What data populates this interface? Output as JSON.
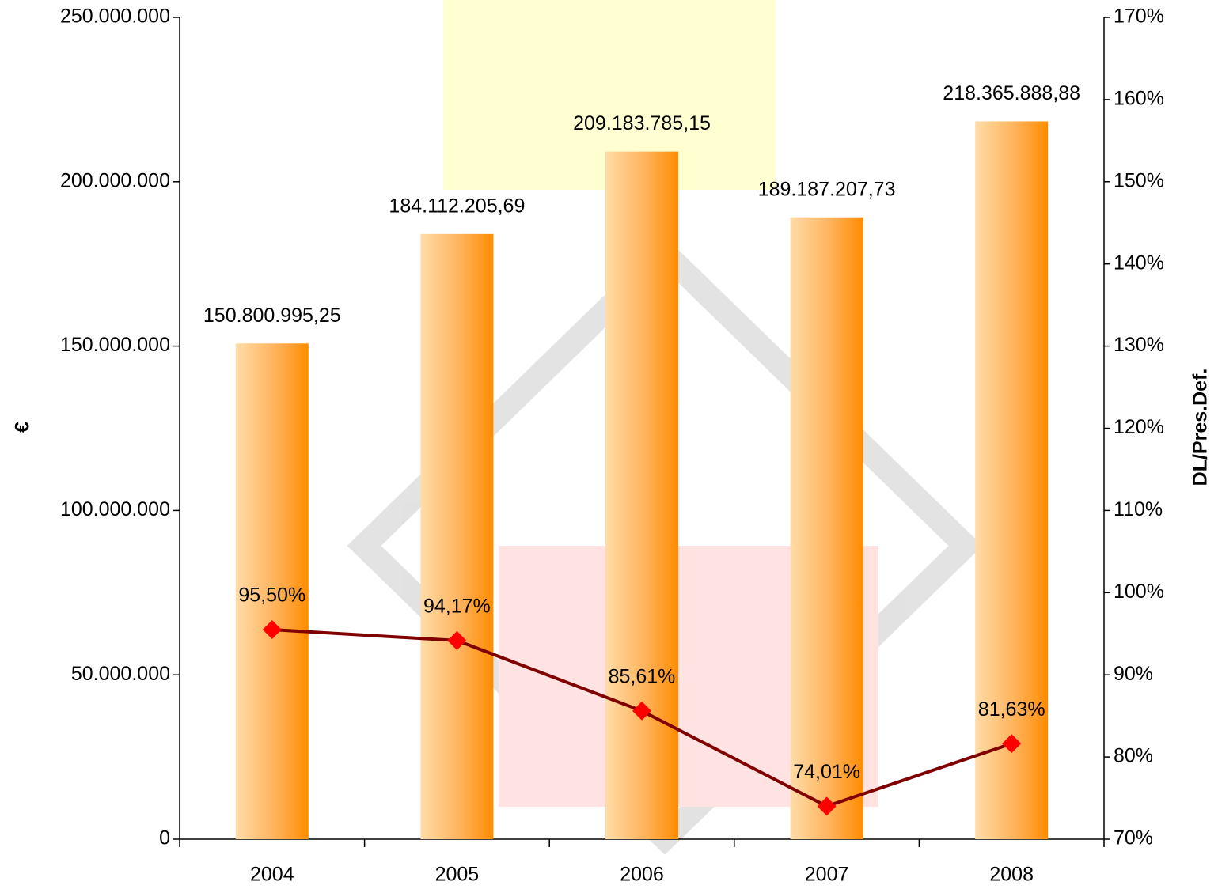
{
  "chart_data": {
    "type": "bar",
    "y_label": "€",
    "y2_label": "DL/Pres.Def.",
    "categories": [
      "2004",
      "2005",
      "2006",
      "2007",
      "2008"
    ],
    "series": [
      {
        "type": "bar",
        "color": "#ff8c00",
        "values": [
          150800995.25,
          184112205.69,
          209183785.15,
          189187207.73,
          218365888.88
        ],
        "value_labels": [
          "150.800.995,25",
          "184.112.205,69",
          "209.183.785,15",
          "189.187.207,73",
          "218.365.888,88"
        ]
      },
      {
        "type": "line",
        "axis": "y2",
        "color": "#800000",
        "marker_color": "#ff0000",
        "values": [
          95.5,
          94.17,
          85.61,
          74.01,
          81.63
        ],
        "value_labels": [
          "95,50%",
          "94,17%",
          "85,61%",
          "74,01%",
          "81,63%"
        ]
      }
    ],
    "ylim": [
      0,
      250000000
    ],
    "yticks": [
      0,
      {
        "value": 50000000,
        "label": "50.000.000"
      },
      {
        "value": 100000000,
        "label": "100.000.000"
      },
      {
        "value": 150000000,
        "label": "150.000.000"
      },
      {
        "value": 200000000,
        "label": "200.000.000"
      },
      {
        "value": 250000000,
        "label": "250.000.000"
      }
    ],
    "y2lim": [
      70,
      170
    ],
    "y2ticks": [
      {
        "value": 70,
        "label": "70%"
      },
      {
        "value": 80,
        "label": "80%"
      },
      {
        "value": 90,
        "label": "90%"
      },
      {
        "value": 100,
        "label": "100%"
      },
      {
        "value": 110,
        "label": "110%"
      },
      {
        "value": 120,
        "label": "120%"
      },
      {
        "value": 130,
        "label": "130%"
      },
      {
        "value": 140,
        "label": "140%"
      },
      {
        "value": 150,
        "label": "150%"
      },
      {
        "value": 160,
        "label": "160%"
      },
      {
        "value": 170,
        "label": "170%"
      }
    ]
  }
}
